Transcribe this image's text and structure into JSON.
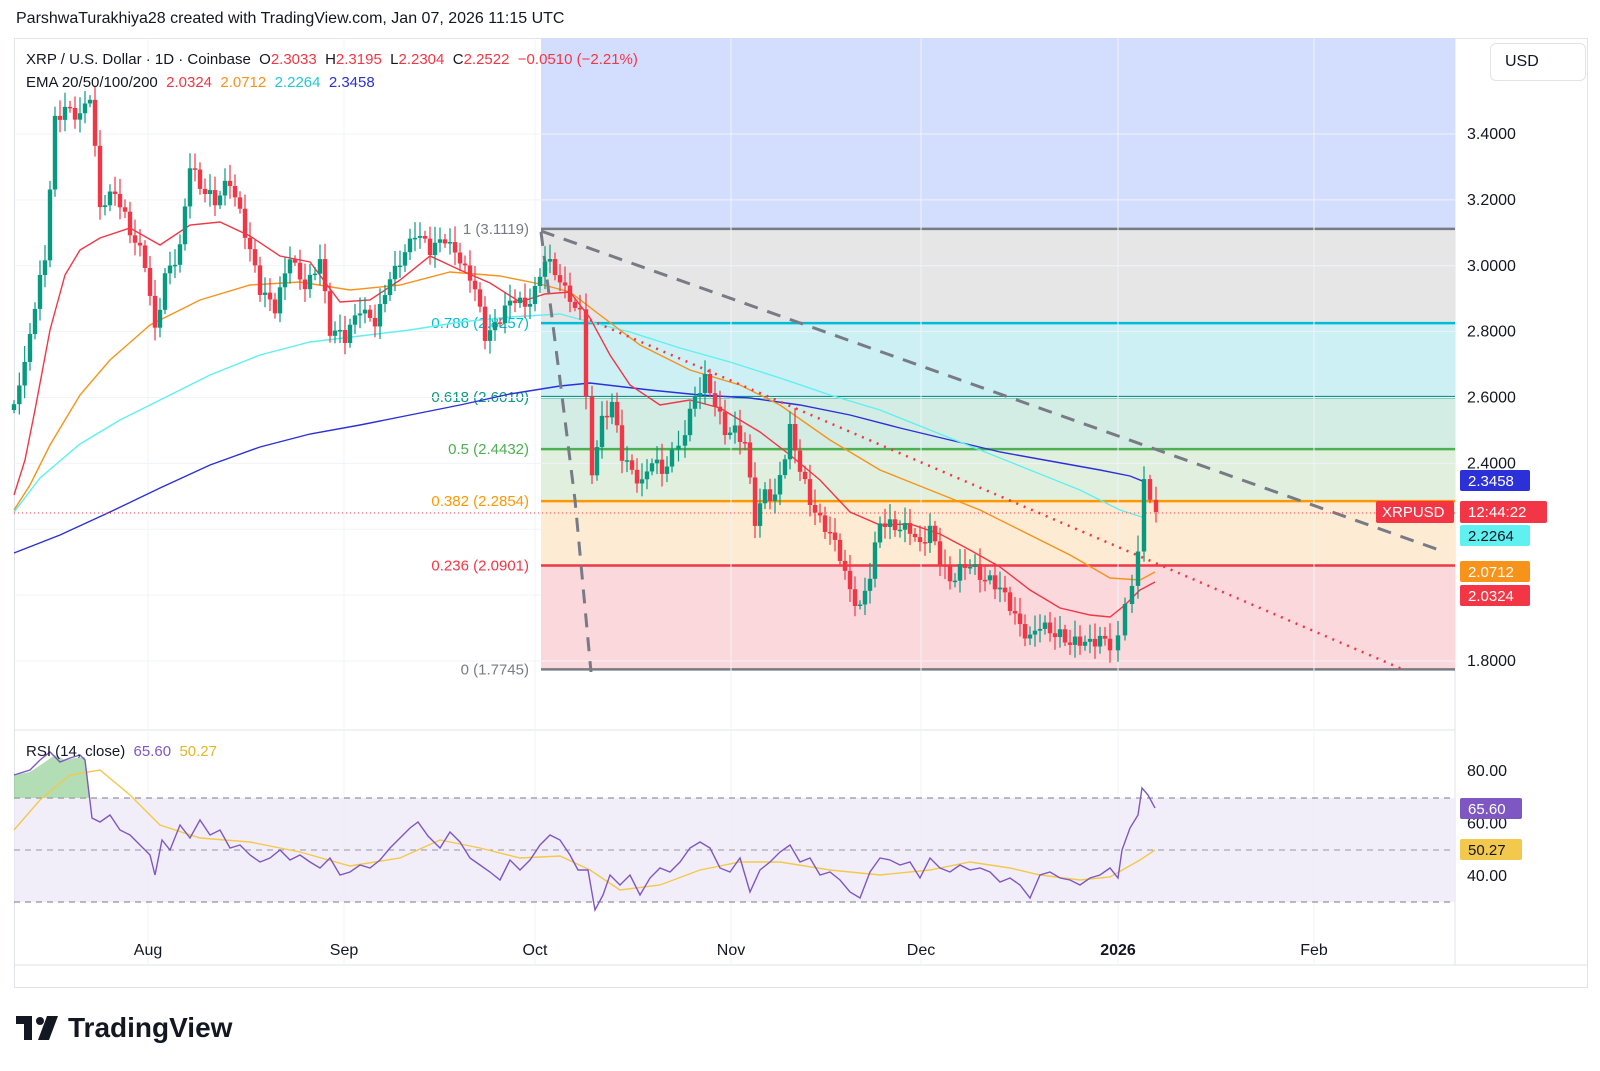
{
  "header": {
    "credit": "ParshwaTurakhiya28 created with TradingView.com, Jan 07, 2026 11:15 UTC"
  },
  "legend": {
    "symbol": "XRP / U.S. Dollar · 1D · Coinbase",
    "o_label": "O",
    "o_value": "2.3033",
    "h_label": "H",
    "h_value": "2.3195",
    "l_label": "L",
    "l_value": "2.2304",
    "c_label": "C",
    "c_value": "2.2522",
    "change": "−0.0510 (−2.21%)",
    "ema_label": "EMA 20/50/100/200",
    "ema20": "2.0324",
    "ema50": "2.0712",
    "ema100": "2.2264",
    "ema200": "2.3458",
    "rsi_label": "RSI (14, close)",
    "rsi_value": "65.60",
    "rsi_ma_value": "50.27"
  },
  "currency_button": "USD",
  "colors": {
    "up": "#089981",
    "down": "#f23645",
    "ema20": "#f23645",
    "ema50": "#f7931a",
    "ema100": "#5ff0f0",
    "ema200": "#2b30d9",
    "rsi": "#7e57c2",
    "rsi_ma": "#f2c94c"
  },
  "price_axis": {
    "ticks": [
      "3.4000",
      "3.2000",
      "3.0000",
      "2.8000",
      "2.6000",
      "2.4000",
      "1.8000"
    ],
    "tick_values": [
      3.4,
      3.2,
      3.0,
      2.8,
      2.6,
      2.4,
      1.8
    ],
    "ema200_badge": "2.3458",
    "symbol_badge": "XRPUSD",
    "countdown_badge": "12:44:22",
    "ema100_badge": "2.2264",
    "ema50_badge": "2.0712",
    "ema20_badge": "2.0324"
  },
  "rsi_axis": {
    "ticks": [
      "80.00",
      "60.00",
      "40.00"
    ],
    "tick_values": [
      80,
      60,
      40
    ],
    "rsi_badge": "65.60",
    "rsi_ma_badge": "50.27"
  },
  "time_axis": {
    "labels": [
      "Aug",
      "Sep",
      "Oct",
      "Nov",
      "Dec",
      "2026",
      "Feb"
    ]
  },
  "fib_levels": [
    {
      "label": "1 (3.1119)",
      "value": 3.1119,
      "color": "#787b86"
    },
    {
      "label": "0.786 (2.8257)",
      "value": 2.8257,
      "color": "#00bcd4"
    },
    {
      "label": "0.618 (2.6010)",
      "value": 2.601,
      "color": "#089981"
    },
    {
      "label": "0.5 (2.4432)",
      "value": 2.4432,
      "color": "#4caf50"
    },
    {
      "label": "0.382 (2.2854)",
      "value": 2.2854,
      "color": "#ff9800"
    },
    {
      "label": "0.236 (2.0901)",
      "value": 2.0901,
      "color": "#f23645"
    },
    {
      "label": "0 (1.7745)",
      "value": 1.7745,
      "color": "#787b86"
    }
  ],
  "chart_data": {
    "type": "candlestick",
    "last_close": 2.2522,
    "ema_series": [
      {
        "name": "EMA 20",
        "last": 2.0324
      },
      {
        "name": "EMA 50",
        "last": 2.0712
      },
      {
        "name": "EMA 100",
        "last": 2.2264
      },
      {
        "name": "EMA 200",
        "last": 2.3458
      }
    ],
    "rsi": {
      "last": 65.6,
      "ma_last": 50.27,
      "bands": [
        70,
        50,
        30
      ]
    }
  },
  "brand": "TradingView"
}
